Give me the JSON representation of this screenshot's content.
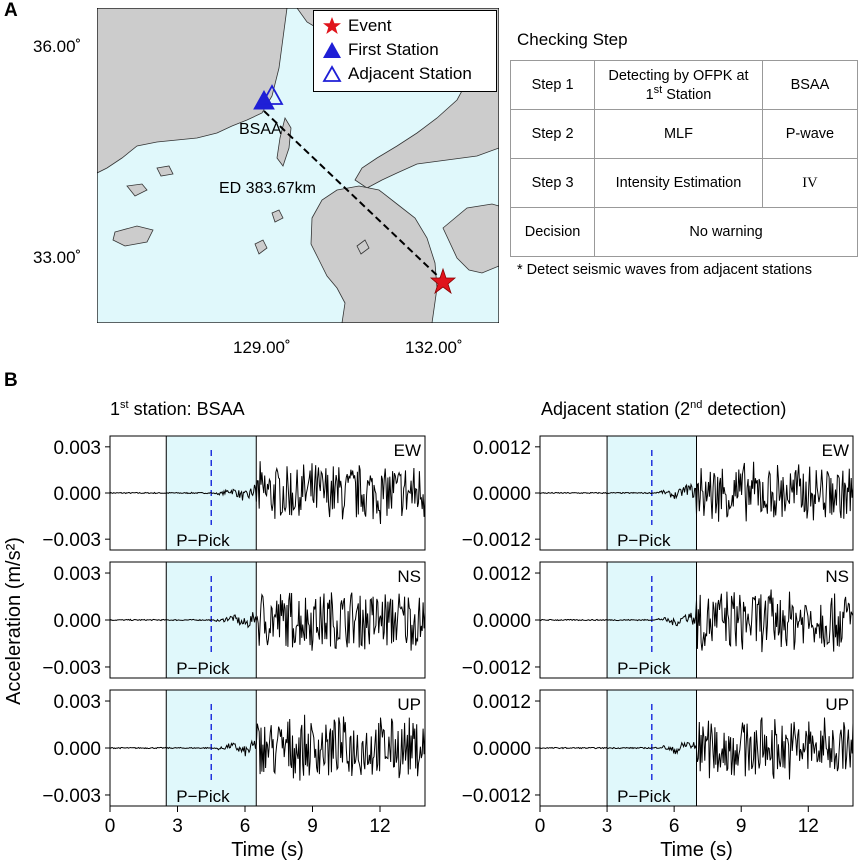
{
  "panel_a": {
    "label": "A",
    "lat_ticks": [
      "36.00˚",
      "33.00˚"
    ],
    "lon_ticks": [
      "129.00˚",
      "132.00˚"
    ],
    "legend": [
      {
        "label": "Event",
        "icon": "red-star-icon"
      },
      {
        "label": "First Station",
        "icon": "filled-triangle-icon"
      },
      {
        "label": "Adjacent Station",
        "icon": "open-triangle-icon"
      }
    ],
    "station_label": "BSAA",
    "distance_label": "ED 383.67km",
    "colors": {
      "sea": "#e0f8fb",
      "land": "#cccccc",
      "event": "#e0141c",
      "station": "#1f1fd6"
    }
  },
  "checking": {
    "title": "Checking Step",
    "rows": [
      {
        "step": "Step 1",
        "method": "Detecting by OFPK at",
        "method_sup": "st",
        "method_sup_pre": "1",
        "method_line2": " Station",
        "result": "BSAA"
      },
      {
        "step": "Step 2",
        "method": "MLF",
        "result": "P-wave"
      },
      {
        "step": "Step 3",
        "method": "Intensity Estimation",
        "result": "IV"
      },
      {
        "step": "Decision",
        "method": "No warning",
        "result": ""
      }
    ],
    "footnote": "* Detect seismic waves from adjacent stations"
  },
  "panel_b": {
    "label": "B",
    "left_title_pre": "1",
    "left_title_sup": "st",
    "left_title_post": " station: BSAA",
    "right_title_pre": "Adjacent station (2",
    "right_title_sup": "nd",
    "right_title_post": " detection)",
    "y_axis_label": "Acceleration (m/s²)",
    "x_axis_label": "Time (s)",
    "pick_label": "P−Pick"
  },
  "chart_data": [
    {
      "type": "line",
      "title": "1st station: BSAA",
      "xlabel": "Time (s)",
      "ylabel": "Acceleration (m/s²)",
      "xlim": [
        0,
        14
      ],
      "x_ticks": [
        "0",
        "3",
        "6",
        "9",
        "12"
      ],
      "y_ticks": [
        "0.003",
        "0.000",
        "−0.003"
      ],
      "ylim": [
        -0.0037,
        0.0037
      ],
      "window": [
        2.5,
        6.5
      ],
      "p_pick": 4.5,
      "components": [
        "EW",
        "NS",
        "UP"
      ]
    },
    {
      "type": "line",
      "title": "Adjacent station (2nd detection)",
      "xlabel": "Time (s)",
      "ylabel": "Acceleration (m/s²)",
      "xlim": [
        0,
        14
      ],
      "x_ticks": [
        "0",
        "3",
        "6",
        "9",
        "12"
      ],
      "y_ticks": [
        "0.0012",
        "0.0000",
        "−0.0012"
      ],
      "ylim": [
        -0.0015,
        0.0015
      ],
      "window": [
        3.0,
        7.0
      ],
      "p_pick": 5.0,
      "components": [
        "EW",
        "NS",
        "UP"
      ]
    }
  ]
}
